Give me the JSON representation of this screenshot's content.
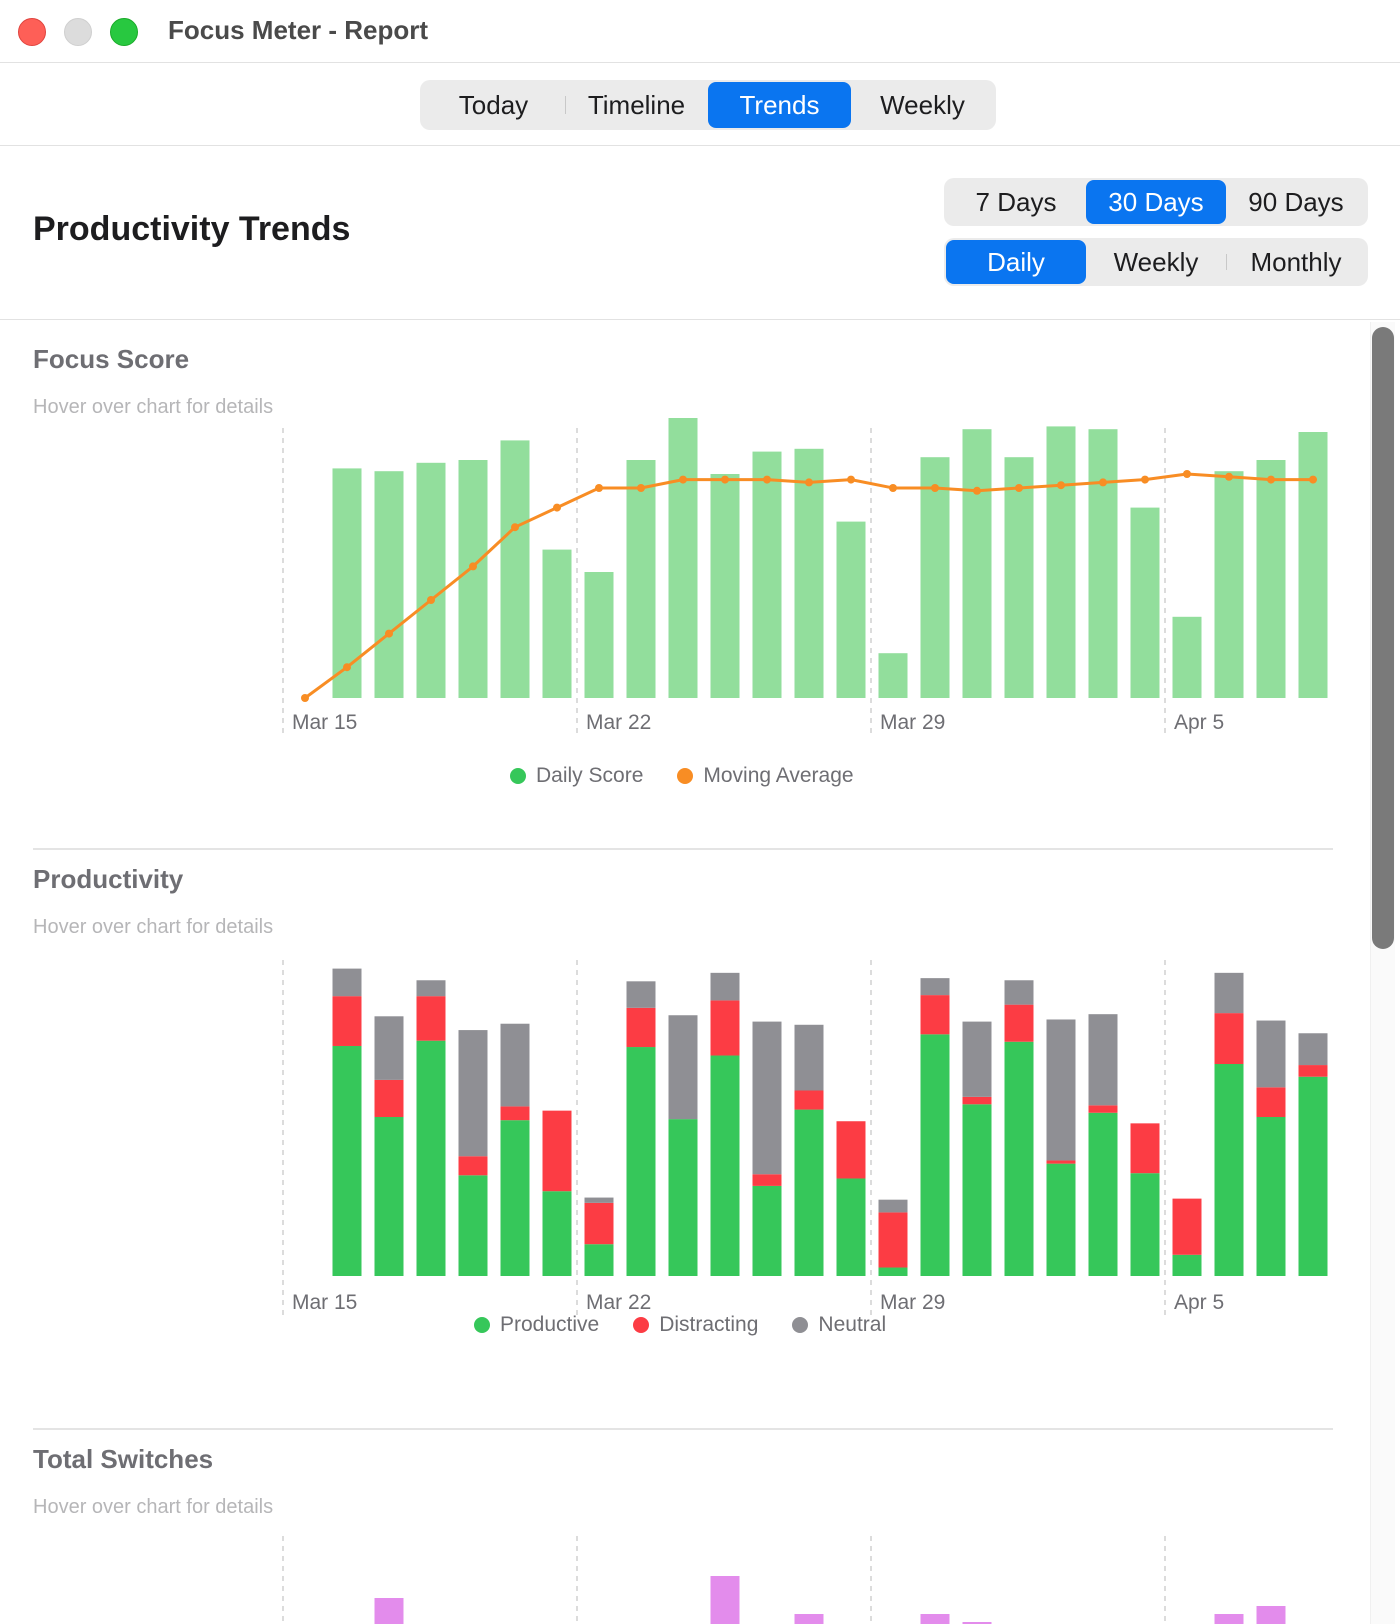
{
  "window": {
    "title": "Focus Meter - Report"
  },
  "tabs": [
    {
      "label": "Today",
      "selected": false
    },
    {
      "label": "Timeline",
      "selected": false
    },
    {
      "label": "Trends",
      "selected": true
    },
    {
      "label": "Weekly",
      "selected": false
    }
  ],
  "header": {
    "title": "Productivity Trends",
    "ranges": [
      {
        "label": "7 Days",
        "selected": false
      },
      {
        "label": "30 Days",
        "selected": true
      },
      {
        "label": "90 Days",
        "selected": false
      }
    ],
    "granularity": [
      {
        "label": "Daily",
        "selected": true
      },
      {
        "label": "Weekly",
        "selected": false
      },
      {
        "label": "Monthly",
        "selected": false
      }
    ]
  },
  "colors": {
    "accent": "#0a75f0",
    "score_bar": "#92de9c",
    "moving_average": "#f88d24",
    "productive": "#36c75a",
    "distracting": "#fc3c44",
    "neutral": "#8f8f94",
    "switches": "#e38cec"
  },
  "x_ticks": [
    "Mar 15",
    "Mar 22",
    "Mar 29",
    "Apr 5"
  ],
  "sections": {
    "focus": {
      "title": "Focus Score",
      "hint": "Hover over chart for details"
    },
    "productivity": {
      "title": "Productivity",
      "hint": "Hover over chart for details"
    },
    "switches": {
      "title": "Total Switches",
      "hint": "Hover over chart for details"
    }
  },
  "chart_data": [
    {
      "type": "bar",
      "name": "focus_score",
      "title": "Focus Score",
      "series": [
        {
          "name": "Daily Score",
          "values": [
            0,
            82,
            81,
            84,
            85,
            92,
            53,
            45,
            85,
            100,
            80,
            88,
            89,
            63,
            16,
            86,
            96,
            86,
            97,
            96,
            68,
            29,
            81,
            85,
            95
          ]
        },
        {
          "name": "Moving Average",
          "values": [
            0,
            11,
            23,
            35,
            47,
            61,
            68,
            75,
            75,
            78,
            78,
            78,
            77,
            78,
            75,
            75,
            74,
            75,
            76,
            77,
            78,
            80,
            79,
            78,
            78
          ]
        }
      ],
      "ylim": [
        0,
        100
      ],
      "x_ticks": [
        "Mar 15",
        "Mar 22",
        "Mar 29",
        "Apr 5"
      ],
      "legend": [
        "Daily Score",
        "Moving Average"
      ],
      "legend_position": "bottom-center",
      "grid": "vertical dashed at ticks"
    },
    {
      "type": "bar",
      "name": "productivity",
      "title": "Productivity",
      "stacked": true,
      "series": [
        {
          "name": "Productive",
          "values": [
            0,
            217,
            150,
            222,
            95,
            147,
            80,
            30,
            216,
            148,
            208,
            85,
            157,
            92,
            8,
            228,
            162,
            221,
            106,
            154,
            97,
            20,
            200,
            150,
            188
          ]
        },
        {
          "name": "Distracting",
          "values": [
            0,
            47,
            35,
            42,
            18,
            13,
            76,
            39,
            37,
            0,
            52,
            11,
            18,
            54,
            52,
            37,
            7,
            35,
            3,
            7,
            47,
            53,
            48,
            28,
            11
          ]
        },
        {
          "name": "Neutral",
          "values": [
            0,
            26,
            60,
            15,
            119,
            78,
            0,
            5,
            25,
            98,
            26,
            144,
            62,
            0,
            12,
            16,
            71,
            23,
            133,
            86,
            0,
            0,
            38,
            63,
            30
          ]
        }
      ],
      "x_ticks": [
        "Mar 15",
        "Mar 22",
        "Mar 29",
        "Apr 5"
      ],
      "legend": [
        "Productive",
        "Distracting",
        "Neutral"
      ],
      "legend_position": "bottom-center",
      "grid": "vertical dashed at ticks"
    },
    {
      "type": "bar",
      "name": "total_switches",
      "title": "Total Switches",
      "series": [
        {
          "name": "Total Switches",
          "values": [
            0,
            7,
            38,
            0,
            0,
            0,
            0,
            0,
            0,
            0,
            60,
            0,
            22,
            0,
            0,
            22,
            14,
            0,
            0,
            0,
            0,
            0,
            22,
            30,
            0
          ]
        }
      ],
      "note_visible": "chart cut off at bottom of window"
    }
  ]
}
